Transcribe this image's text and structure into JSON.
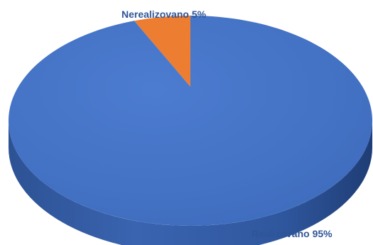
{
  "chart_data": {
    "type": "pie",
    "style": "3d",
    "slices": [
      {
        "name": "Realizovano",
        "value": 95,
        "label": "Realizovano 95%",
        "color": "#4472C4"
      },
      {
        "name": "Nerealizovano",
        "value": 5,
        "label": "Nerealizovano 5%",
        "color": "#ED7D31"
      }
    ],
    "label_color": "#2F5597"
  }
}
